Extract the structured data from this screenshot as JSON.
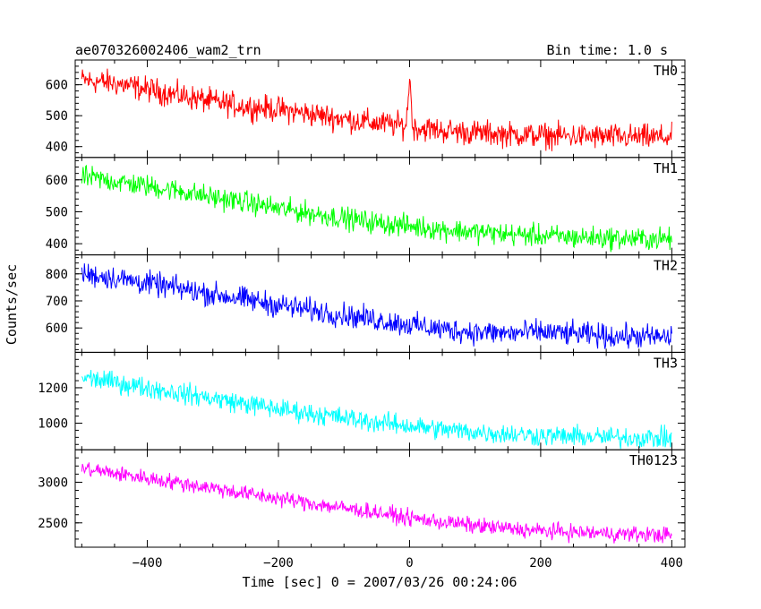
{
  "chart_data": {
    "type": "line",
    "title": "ae070326002406_wam2_trn",
    "bin_time": "Bin time: 1.0 s",
    "xlabel": "Time [sec] 0 = 2007/03/26 00:24:06",
    "ylabel": "Counts/sec",
    "xlim": [
      -510,
      420
    ],
    "xticks": [
      -400,
      -200,
      0,
      200,
      400
    ],
    "grid": false,
    "panels": [
      {
        "name": "TH0",
        "color": "#ff0000",
        "ylim": [
          365,
          680
        ],
        "yticks": [
          400,
          500,
          600
        ],
        "x": [
          -500,
          -450,
          -400,
          -350,
          -300,
          -250,
          -200,
          -150,
          -100,
          -50,
          -5,
          0,
          5,
          50,
          100,
          150,
          200,
          250,
          300,
          350,
          400
        ],
        "values": [
          615,
          605,
          585,
          565,
          545,
          530,
          520,
          505,
          490,
          475,
          468,
          630,
          462,
          452,
          445,
          440,
          436,
          434,
          432,
          430,
          430
        ],
        "noise": 35
      },
      {
        "name": "TH1",
        "color": "#00ff00",
        "ylim": [
          365,
          670
        ],
        "yticks": [
          400,
          500,
          600
        ],
        "x": [
          -500,
          -450,
          -400,
          -350,
          -300,
          -250,
          -200,
          -150,
          -100,
          -50,
          0,
          50,
          100,
          150,
          200,
          250,
          300,
          350,
          400
        ],
        "values": [
          610,
          595,
          580,
          565,
          545,
          530,
          510,
          495,
          480,
          465,
          455,
          445,
          437,
          430,
          425,
          420,
          418,
          415,
          415
        ],
        "noise": 30
      },
      {
        "name": "TH2",
        "color": "#0000ff",
        "ylim": [
          510,
          870
        ],
        "yticks": [
          600,
          700,
          800
        ],
        "x": [
          -500,
          -450,
          -400,
          -350,
          -300,
          -250,
          -200,
          -150,
          -100,
          -50,
          0,
          50,
          100,
          150,
          200,
          250,
          300,
          350,
          400
        ],
        "values": [
          800,
          785,
          765,
          745,
          725,
          705,
          685,
          665,
          648,
          630,
          612,
          595,
          585,
          580,
          585,
          578,
          570,
          568,
          565
        ],
        "noise": 38
      },
      {
        "name": "TH3",
        "color": "#00ffff",
        "ylim": [
          850,
          1400
        ],
        "yticks": [
          1000,
          1200
        ],
        "x": [
          -500,
          -450,
          -400,
          -350,
          -300,
          -250,
          -200,
          -150,
          -100,
          -50,
          0,
          50,
          100,
          150,
          200,
          250,
          300,
          350,
          400
        ],
        "values": [
          1260,
          1230,
          1200,
          1170,
          1140,
          1110,
          1080,
          1055,
          1030,
          1005,
          985,
          965,
          950,
          940,
          930,
          925,
          920,
          918,
          915
        ],
        "noise": 50
      },
      {
        "name": "TH0123",
        "color": "#ff00ff",
        "ylim": [
          2200,
          3400
        ],
        "yticks": [
          2500,
          3000
        ],
        "x": [
          -500,
          -450,
          -400,
          -350,
          -300,
          -250,
          -200,
          -150,
          -100,
          -50,
          0,
          50,
          100,
          150,
          200,
          250,
          300,
          350,
          400
        ],
        "values": [
          3170,
          3110,
          3050,
          2990,
          2930,
          2860,
          2800,
          2740,
          2680,
          2630,
          2560,
          2510,
          2465,
          2430,
          2400,
          2385,
          2370,
          2360,
          2350
        ],
        "noise": 85
      }
    ]
  }
}
